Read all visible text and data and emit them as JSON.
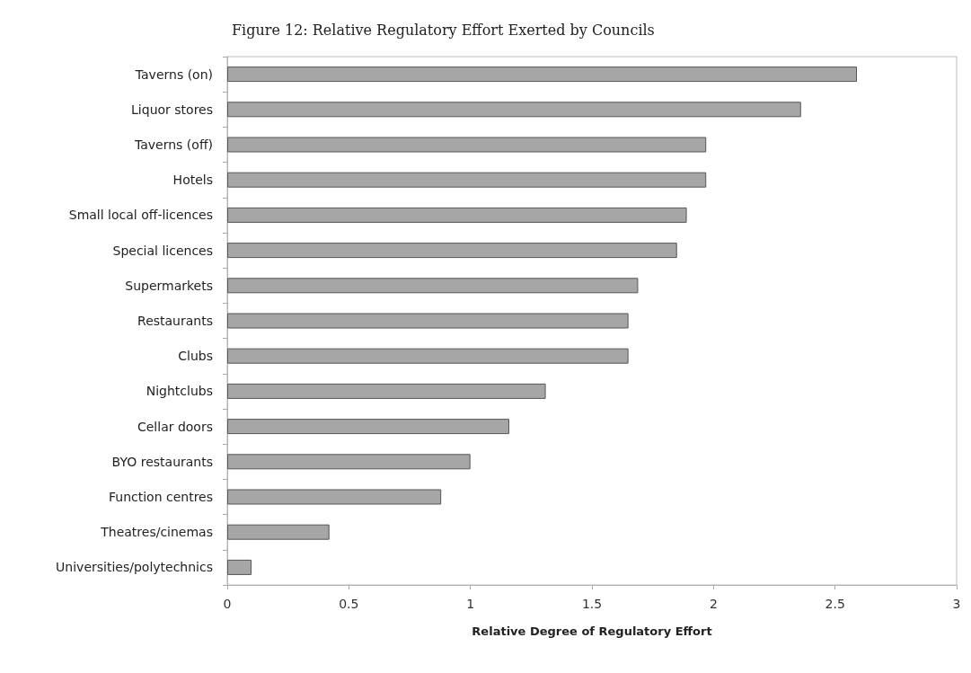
{
  "chart_data": {
    "type": "bar",
    "orientation": "horizontal",
    "title": "Figure 12: Relative Regulatory Effort Exerted by Councils",
    "xlabel": "Relative Degree of Regulatory Effort",
    "categories": [
      "Taverns (on)",
      "Liquor stores",
      "Taverns (off)",
      "Hotels",
      "Small local off-licences",
      "Special licences",
      "Supermarkets",
      "Restaurants",
      "Clubs",
      "Nightclubs",
      "Cellar doors",
      "BYO restaurants",
      "Function centres",
      "Theatres/cinemas",
      "Universities/polytechnics"
    ],
    "values": [
      2.59,
      2.36,
      1.97,
      1.97,
      1.89,
      1.85,
      1.69,
      1.65,
      1.65,
      1.31,
      1.16,
      1.0,
      0.88,
      0.42,
      0.1
    ],
    "color": "#a6a6a6",
    "xlim": [
      0,
      3
    ],
    "xticks": [
      0,
      0.5,
      1,
      1.5,
      2,
      2.5,
      3
    ],
    "grid": false
  }
}
